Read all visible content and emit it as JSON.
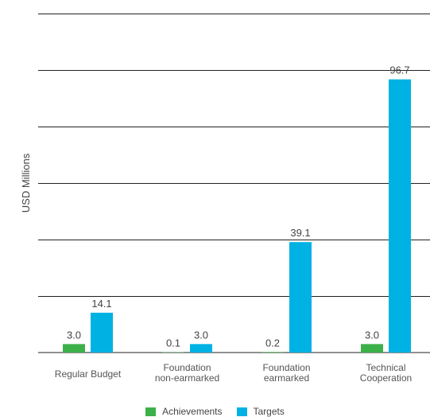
{
  "chart_data": {
    "type": "bar",
    "title": "",
    "xlabel": "",
    "ylabel": "USD Millions",
    "ylim": [
      0,
      120
    ],
    "y_gridlines": [
      20,
      40,
      60,
      80,
      100,
      120
    ],
    "categories": [
      [
        "Regular Budget"
      ],
      [
        "Foundation",
        "non-earmarked"
      ],
      [
        "Foundation",
        "earmarked"
      ],
      [
        "Technical",
        "Cooperation"
      ]
    ],
    "series": [
      {
        "name": "Achievements",
        "color": "#3cb14a",
        "values": [
          3.0,
          0.1,
          0.2,
          3.0
        ],
        "labels": [
          "3.0",
          "0.1",
          "0.2",
          "3.0"
        ]
      },
      {
        "name": "Targets",
        "color": "#00b2e3",
        "values": [
          14.1,
          3.0,
          39.1,
          96.7
        ],
        "labels": [
          "14.1",
          "3.0",
          "39.1",
          "96.7"
        ]
      }
    ],
    "legend_position": "bottom-center",
    "grid": true
  }
}
